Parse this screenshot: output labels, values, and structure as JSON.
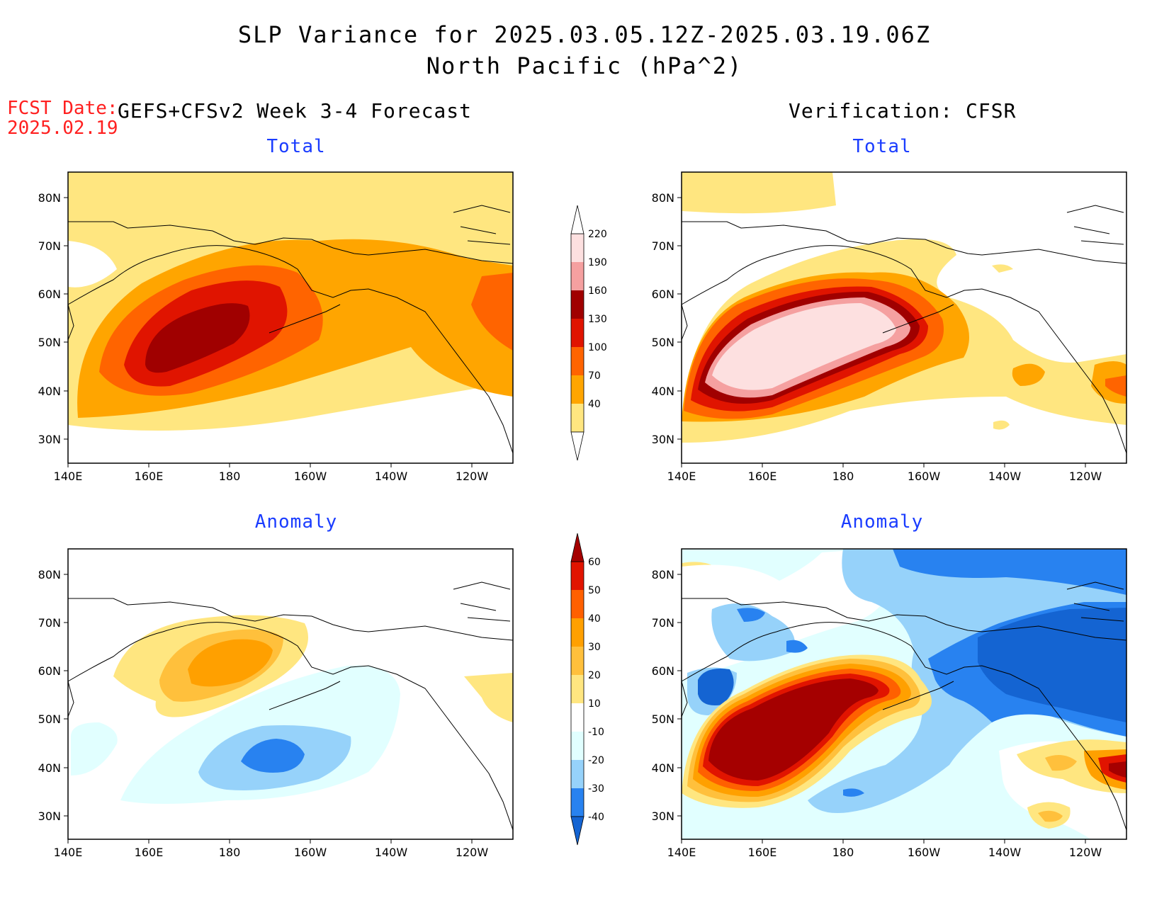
{
  "title": {
    "line1": "SLP Variance for 2025.03.05.12Z-2025.03.19.06Z",
    "line2": "North Pacific (hPa^2)"
  },
  "forecast_date": {
    "label": "FCST Date:",
    "value": "2025.02.19"
  },
  "columns": {
    "left": "GEFS+CFSv2 Week 3-4 Forecast",
    "right": "Verification: CFSR"
  },
  "panels": {
    "top_left": "Total",
    "top_right": "Total",
    "bottom_left": "Anomaly",
    "bottom_right": "Anomaly"
  },
  "axes": {
    "lat_labels": [
      "80N",
      "70N",
      "60N",
      "50N",
      "40N",
      "30N"
    ],
    "lon_labels": [
      "140E",
      "160E",
      "180",
      "160W",
      "140W",
      "120W"
    ]
  },
  "colorbars": {
    "total": {
      "levels": [
        "40",
        "70",
        "100",
        "130",
        "160",
        "190",
        "220"
      ],
      "colors": [
        "#ffe680",
        "#ffa500",
        "#ff6400",
        "#e01400",
        "#a00000",
        "#f5a0a0",
        "#fde0e0"
      ]
    },
    "anomaly": {
      "levels": [
        "-40",
        "-30",
        "-20",
        "-10",
        "10",
        "20",
        "30",
        "40",
        "50",
        "60"
      ],
      "colors": [
        "#1464d2",
        "#2882f0",
        "#96d2fa",
        "#e1ffff",
        "#ffffff",
        "#ffe680",
        "#ffc03c",
        "#ffa000",
        "#ff6000",
        "#e11400",
        "#a50000"
      ]
    }
  }
}
